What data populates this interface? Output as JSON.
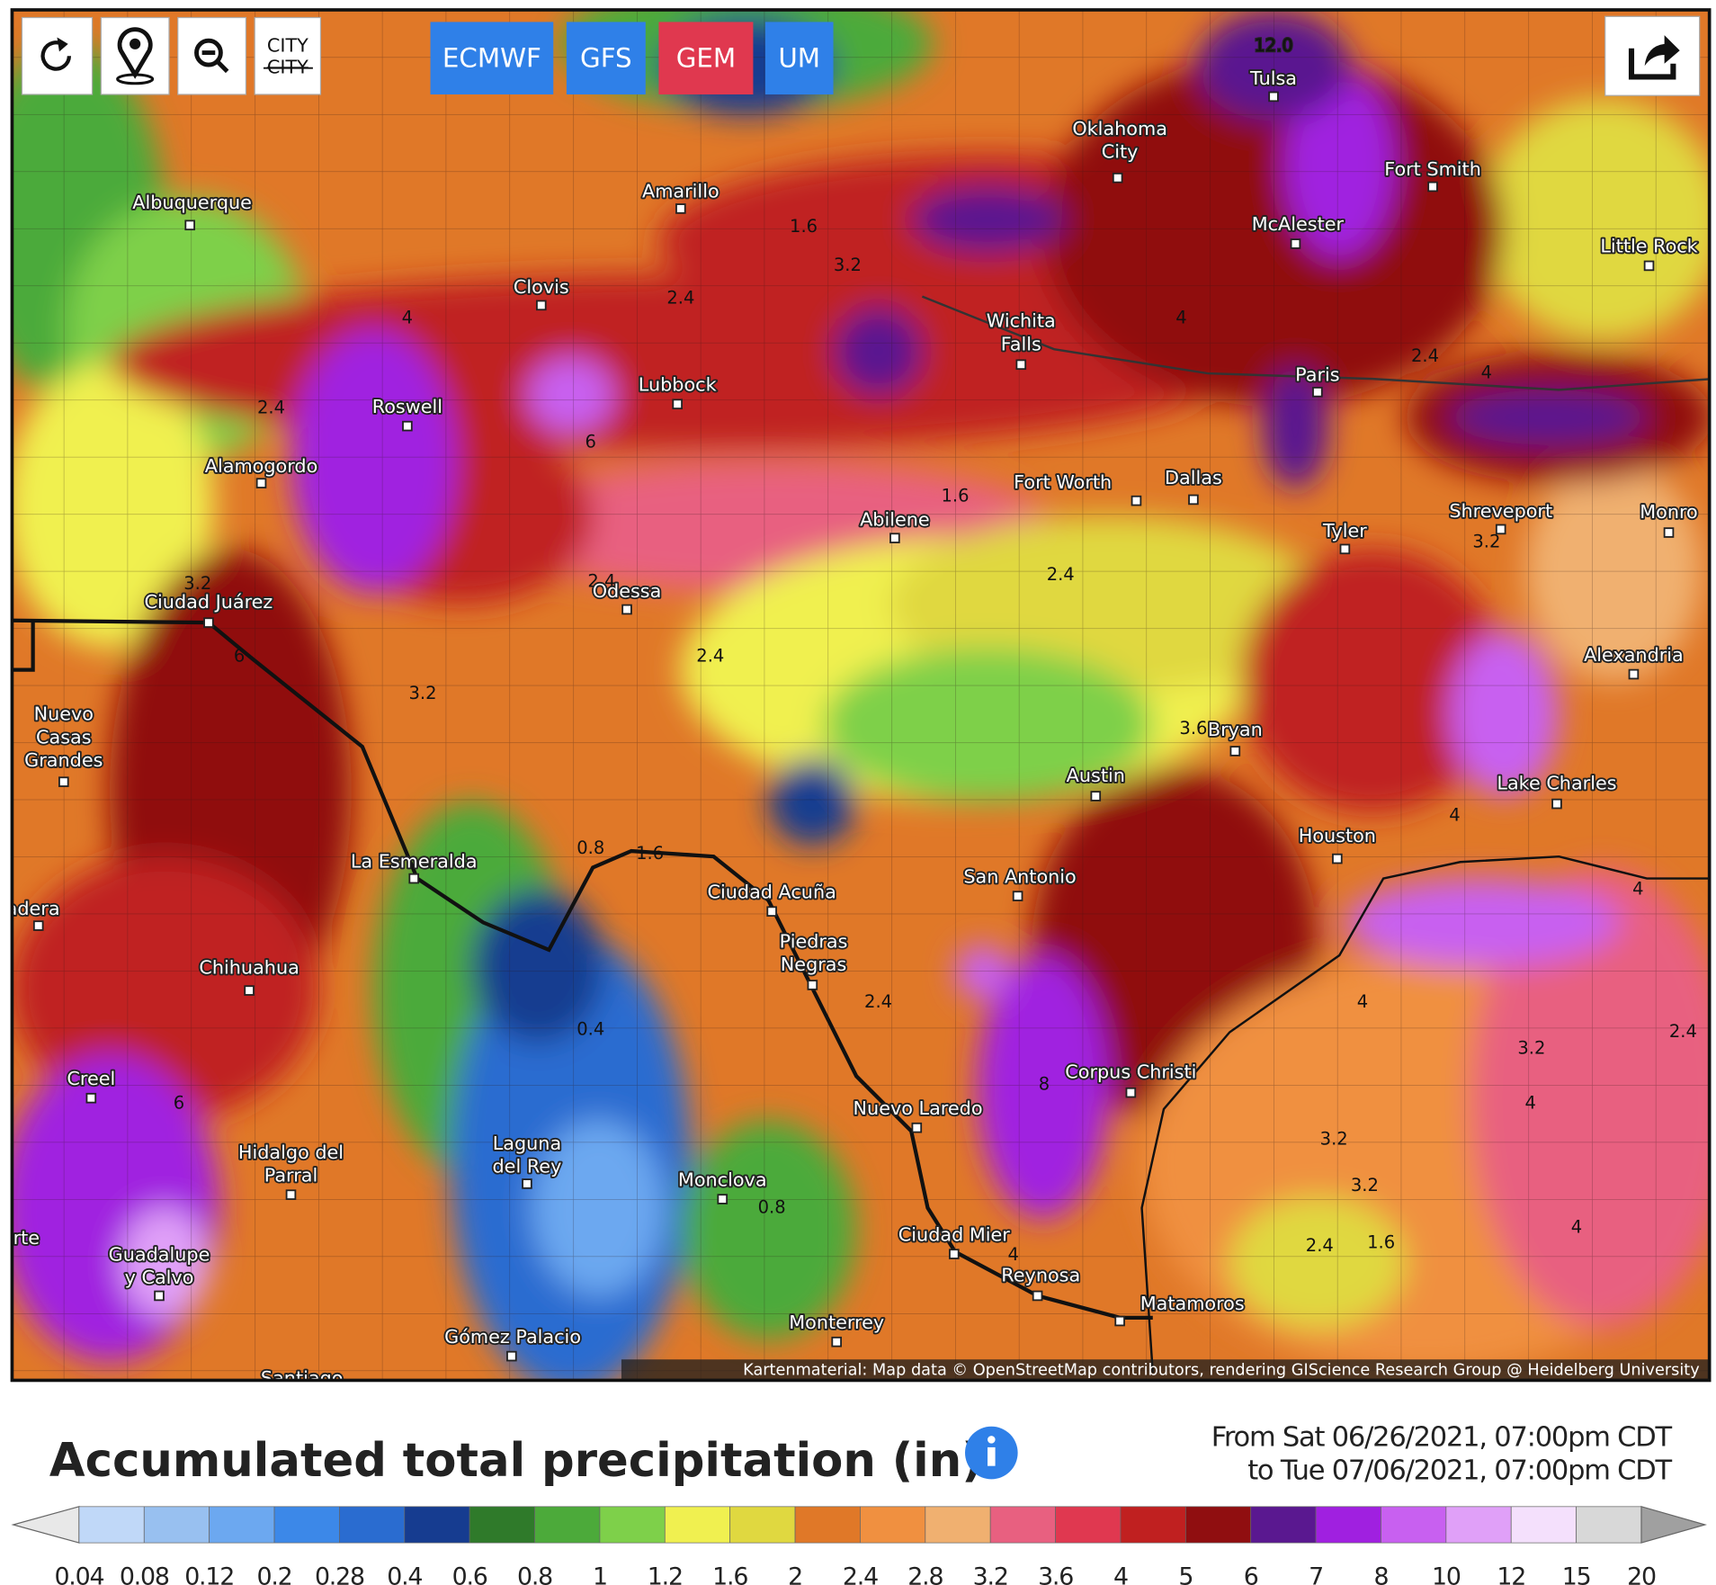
{
  "toolbar": {
    "city_toggle": [
      "CITY",
      "CITY"
    ],
    "models": [
      {
        "name": "ECMWF",
        "color": "#2f80e8"
      },
      {
        "name": "GFS",
        "color": "#2f80e8"
      },
      {
        "name": "GEM",
        "color": "#e0384f"
      },
      {
        "name": "UM",
        "color": "#2f80e8"
      }
    ]
  },
  "map": {
    "cities": [
      "Tulsa",
      [
        "Oklahoma",
        "City"
      ],
      "Fort Smith",
      "McAlester",
      "Little Rock",
      "Amarillo",
      "Albuquerque",
      "Clovis",
      [
        "Wichita",
        "Falls"
      ],
      "Paris",
      "Lubbock",
      "Roswell",
      "Alamogordo",
      "Fort Worth",
      "Dallas",
      "Abilene",
      "Shreveport",
      "Monro",
      "Tyler",
      "Odessa",
      "Ciudad Juárez",
      "Alexandria",
      [
        "Nuevo",
        "Casas",
        "Grandes"
      ],
      "Bryan",
      "Austin",
      "Lake Charles",
      "Houston",
      "La Esmeralda",
      "Ciudad Acuña",
      "San Antonio",
      "adera",
      [
        "Piedras",
        "Negras"
      ],
      "Chihuahua",
      "Creel",
      "Corpus Christi",
      "Nuevo Laredo",
      [
        "Hidalgo del",
        "Parral"
      ],
      [
        "Laguna",
        "del Rey"
      ],
      "Monclova",
      "rte",
      [
        "Guadalupe",
        "y Calvo"
      ],
      "Ciudad Mier",
      "Reynosa",
      "Matamoros",
      "Monterrey",
      "Gómez Palacio",
      "Santiago"
    ],
    "contour_labels": [
      {
        "value": 12,
        "label": "12.0"
      },
      1.6,
      3.2,
      2.4,
      4,
      2.4,
      6,
      4,
      2.4,
      4,
      1.6,
      2.4,
      3.2,
      3.2,
      2.4,
      2.4,
      3.2,
      6,
      3.6,
      0.8,
      1.6,
      4,
      4,
      2.4,
      0.4,
      4,
      2.4,
      3.2,
      4,
      8,
      6,
      3.2,
      3.2,
      0.8,
      2.4,
      1.6,
      4,
      4
    ],
    "attribution": "Kartenmaterial: Map data © OpenStreetMap contributors, rendering GIScience Research Group @ Heidelberg University"
  },
  "title": "Accumulated total precipitation (in)",
  "period": [
    "From Sat 06/26/2021, 07:00pm CDT",
    "to Tue 07/06/2021, 07:00pm CDT"
  ],
  "legend": {
    "colors": [
      "#e8e8e8",
      "#c0d8f8",
      "#98c0f0",
      "#6ca8f0",
      "#3c88e8",
      "#2a6cd0",
      "#163c90",
      "#2f7a2a",
      "#4caa3a",
      "#7ed04a",
      "#f0f050",
      "#e0d840",
      "#e07828",
      "#f09040",
      "#f0b070",
      "#e86080",
      "#e03850",
      "#c02020",
      "#900e10",
      "#5a1890",
      "#a020e0",
      "#c860f0",
      "#e0a0f8",
      "#f4e0fc",
      "#d8d8d8",
      "#a0a0a0"
    ],
    "ticks": [
      0.04,
      0.08,
      0.12,
      0.2,
      0.28,
      0.4,
      0.6,
      0.8,
      1,
      1.2,
      1.6,
      2,
      2.4,
      2.8,
      3.2,
      3.6,
      4,
      5,
      6,
      7,
      8,
      10,
      12,
      15,
      20
    ]
  }
}
